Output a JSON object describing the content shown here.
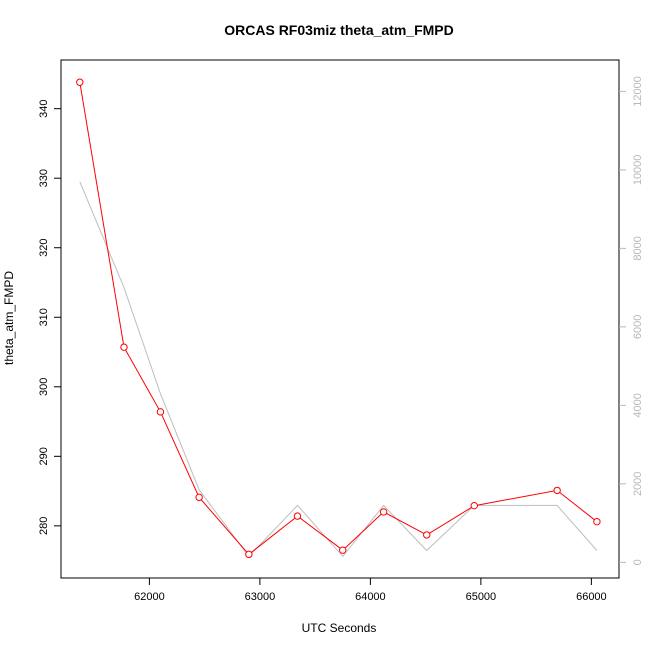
{
  "chart_data": {
    "type": "line",
    "title": "ORCAS RF03miz theta_atm_FMPD",
    "xlabel": "UTC Seconds",
    "ylabel": "theta_atm_FMPD",
    "xlim": [
      61200,
      66250
    ],
    "ylim": [
      272.5,
      347
    ],
    "y2lim": [
      -400,
      12800
    ],
    "x_ticks": [
      62000,
      63000,
      64000,
      65000,
      66000
    ],
    "y_ticks": [
      280,
      290,
      300,
      310,
      320,
      330,
      340
    ],
    "y2_ticks": [
      0,
      2000,
      4000,
      6000,
      8000,
      10000,
      12000
    ],
    "grid": false,
    "series": [
      {
        "axis": "left",
        "color": "#ff0000",
        "marker": "open-circle",
        "x": [
          61370,
          61770,
          62100,
          62450,
          62900,
          63340,
          63750,
          64120,
          64510,
          64940,
          65690,
          66050
        ],
        "y": [
          343.8,
          305.7,
          296.4,
          284.1,
          275.9,
          281.4,
          276.5,
          282.0,
          278.7,
          282.9,
          285.1,
          280.6
        ]
      },
      {
        "axis": "right",
        "color": "#bebebe",
        "marker": "none",
        "x": [
          61370,
          61770,
          62100,
          62450,
          62900,
          63340,
          63750,
          64120,
          64510,
          64940,
          65690,
          66050
        ],
        "y": [
          9700,
          7000,
          4300,
          1850,
          150,
          1450,
          150,
          1450,
          300,
          1450,
          1450,
          300
        ]
      }
    ]
  }
}
